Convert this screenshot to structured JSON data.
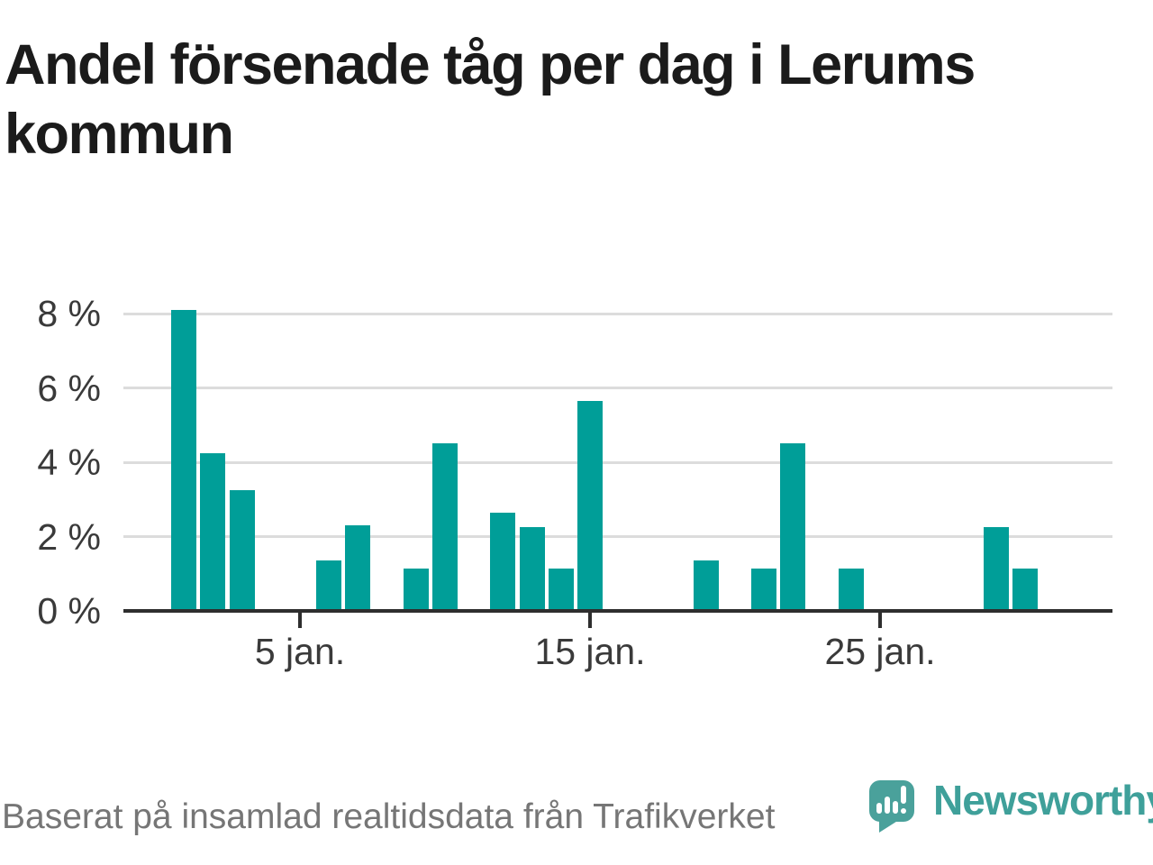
{
  "page": {
    "background": "#FFFFFF"
  },
  "header": {
    "title": "Andel försenade tåg per dag i Lerums kommun",
    "title_lines": [
      "Andel försenade tåg per dag i Lerums",
      "kommun"
    ]
  },
  "footer": {
    "source_text": "Baserat på insamlad realtidsdata från Trafikverket",
    "brand_name": "Newsworthy",
    "logo_icon": "speech-bubble-bar-chart-icon"
  },
  "colors": {
    "bar": "#009E98",
    "logo": "#4AA19B",
    "logo_text": "#3FA09A",
    "gridline": "#DCDCDC",
    "axis": "#2E2E2E",
    "title": "#1B1B1B",
    "tick_label": "#3A3A3A",
    "footer_text": "#767676"
  },
  "chart_data": {
    "type": "bar",
    "title": "Andel försenade tåg per dag i Lerums kommun",
    "x_unit": "dag i januari",
    "x": [
      1,
      2,
      3,
      4,
      5,
      6,
      7,
      8,
      9,
      10,
      11,
      12,
      13,
      14,
      15,
      16,
      17,
      18,
      19,
      20,
      21,
      22,
      23,
      24,
      25,
      26,
      27,
      28,
      29,
      30,
      31
    ],
    "values": [
      8.1,
      4.25,
      3.25,
      0,
      0,
      1.35,
      2.3,
      0,
      1.15,
      4.5,
      0,
      2.65,
      2.25,
      1.15,
      5.65,
      0,
      0,
      0,
      1.35,
      0,
      1.15,
      4.5,
      0,
      1.15,
      0,
      0,
      0,
      0,
      2.25,
      1.15,
      0
    ],
    "xticks": [
      {
        "x": 5,
        "label": "5 jan."
      },
      {
        "x": 15,
        "label": "15 jan."
      },
      {
        "x": 25,
        "label": "25 jan."
      }
    ],
    "yticks": [
      {
        "value": 0,
        "label": "0 %"
      },
      {
        "value": 2,
        "label": "2 %"
      },
      {
        "value": 4,
        "label": "4 %"
      },
      {
        "value": 6,
        "label": "6 %"
      },
      {
        "value": 8,
        "label": "8 %"
      }
    ],
    "ylim": [
      0,
      8.5
    ],
    "xlabel": "",
    "ylabel": "",
    "grid": "horizontal",
    "legend_position": "none",
    "bar_color": "#009E98"
  }
}
